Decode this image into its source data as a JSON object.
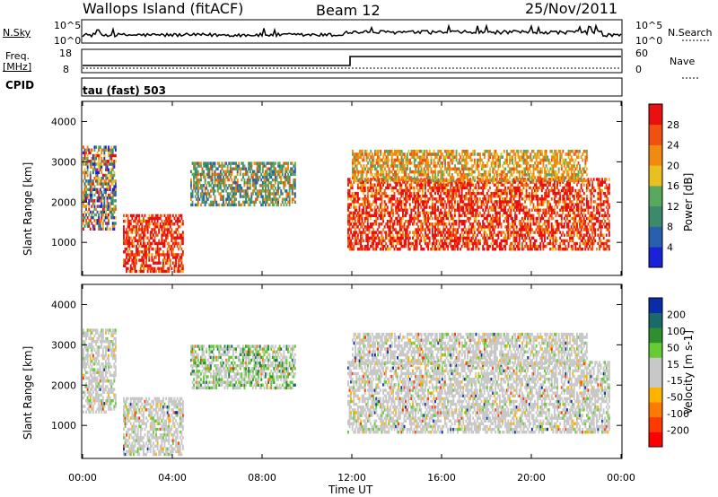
{
  "header": {
    "station": "Wallops Island (fitACF)",
    "beam": "Beam 12",
    "date": "25/Nov/2011"
  },
  "status_rows": {
    "nsky_label": "N.Sky",
    "nsky_ticks": [
      "10^5",
      "10^0"
    ],
    "nsearch_label": "N.Search",
    "nsearch_ticks": [
      "10^5",
      "10^0"
    ],
    "freq_label": "Freq.",
    "freq_unit": "[MHz]",
    "freq_ticks": [
      "18",
      "8"
    ],
    "nave_label": "Nave",
    "nave_ticks": [
      "60",
      "0"
    ],
    "cpid_label": "CPID",
    "cpid_value": "tau (fast) 503"
  },
  "colors": {
    "power_scale": [
      "#1a22d8",
      "#2a5fb0",
      "#3c8a6a",
      "#5aa860",
      "#e8c020",
      "#f08a10",
      "#f05010",
      "#e81010"
    ],
    "velocity_scale": [
      "#ff0000",
      "#ff3a00",
      "#ff7a00",
      "#ffb300",
      "#c8c8c8",
      "#c8c8c8",
      "#66cc33",
      "#2f8f2f",
      "#1a6a6a",
      "#0a2ca8"
    ]
  },
  "chart_data": [
    {
      "type": "heatmap",
      "name": "power",
      "xlabel": "",
      "ylabel": "Slant Range [km]",
      "x_range_hours": [
        0,
        24
      ],
      "ylim": [
        180,
        4500
      ],
      "yticks": [
        "1000",
        "2000",
        "3000",
        "4000"
      ],
      "colorbar_label": "Power [dB]",
      "colorbar_range": [
        0,
        32
      ],
      "colorbar_ticks": [
        "4",
        "8",
        "12",
        "16",
        "20",
        "24",
        "28"
      ],
      "regions": [
        {
          "t": [
            0.0,
            1.5
          ],
          "r": [
            1300,
            3400
          ],
          "level": "mixed"
        },
        {
          "t": [
            1.8,
            4.5
          ],
          "r": [
            250,
            1700
          ],
          "level": "strong"
        },
        {
          "t": [
            4.8,
            9.5
          ],
          "r": [
            1900,
            3000
          ],
          "level": "moderate"
        },
        {
          "t": [
            11.8,
            23.5
          ],
          "r": [
            800,
            2600
          ],
          "level": "strong"
        },
        {
          "t": [
            12.0,
            22.5
          ],
          "r": [
            2500,
            3300
          ],
          "level": "weak"
        }
      ]
    },
    {
      "type": "heatmap",
      "name": "velocity",
      "xlabel": "Time UT",
      "ylabel": "Slant Range [km]",
      "x_range_hours": [
        0,
        24
      ],
      "ylim": [
        180,
        4500
      ],
      "xticks": [
        "00:00",
        "04:00",
        "08:00",
        "12:00",
        "16:00",
        "20:00",
        "00:00"
      ],
      "yticks": [
        "1000",
        "2000",
        "3000",
        "4000"
      ],
      "colorbar_label": "Velocity [m s-1]",
      "colorbar_range": [
        -250,
        250
      ],
      "colorbar_ticks": [
        "200",
        "100",
        "50",
        "15",
        "-15",
        "-50",
        "-100",
        "-200"
      ],
      "regions": [
        {
          "t": [
            0.0,
            1.5
          ],
          "r": [
            1300,
            3400
          ],
          "level": "mostly low"
        },
        {
          "t": [
            1.8,
            4.5
          ],
          "r": [
            250,
            1700
          ],
          "level": "mostly low"
        },
        {
          "t": [
            4.8,
            9.5
          ],
          "r": [
            1900,
            3000
          ],
          "level": "positive patches"
        },
        {
          "t": [
            11.8,
            23.5
          ],
          "r": [
            800,
            2600
          ],
          "level": "mostly low"
        },
        {
          "t": [
            12.0,
            22.5
          ],
          "r": [
            2500,
            3300
          ],
          "level": "mostly low"
        }
      ]
    }
  ]
}
